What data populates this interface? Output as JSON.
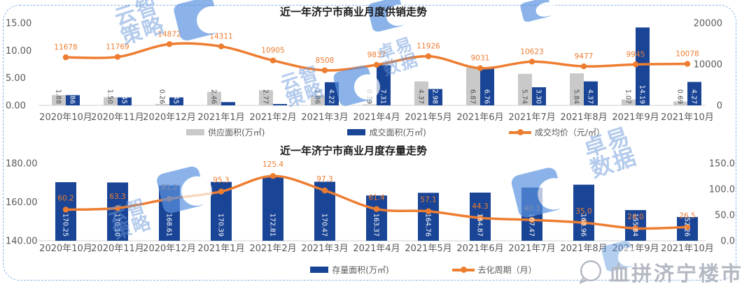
{
  "watermarks": {
    "strategy_line1": "云智",
    "strategy_line2": "策略",
    "data_line1": "卓易",
    "data_line2": "数据"
  },
  "brand": {
    "text": "血拼济宁楼市"
  },
  "colors": {
    "supply_bar": "#c9c9c9",
    "deal_bar": "#1a4596",
    "line_orange": "#ed7d31",
    "axis_text": "#595959",
    "baseline": "#d9d9d9",
    "frame": "#8ab4e4",
    "watermark_blue": "#5b93e0",
    "brand_gray": "#b3b8c2"
  },
  "chart_data": [
    {
      "type": "bar+line",
      "title": "近一年济宁市商业月度供销走势",
      "categories": [
        "2020年10月",
        "2020年11月",
        "2020年12月",
        "2021年1月",
        "2021年2月",
        "2021年3月",
        "2021年4月",
        "2021年5月",
        "2021年6月",
        "2021年7月",
        "2021年8月",
        "2021年9月",
        "2021年10月"
      ],
      "series": [
        {
          "name": "供应面积(万㎡)",
          "type": "bar",
          "color": "#c9c9c9",
          "axis": "left",
          "values": [
            1.88,
            1.5,
            0.26,
            2.46,
            2.77,
            1.86,
            0.19,
            4.37,
            6.87,
            5.74,
            5.84,
            1.07,
            0.69
          ],
          "labels": [
            "1.88",
            "1.50",
            "0.26",
            "2.46",
            "2.77",
            "1.86",
            "0.19",
            "4.37",
            "6.87",
            "5.74",
            "5.84",
            "1.07",
            "0.69"
          ]
        },
        {
          "name": "成交面积(万㎡)",
          "type": "bar",
          "color": "#1a4596",
          "axis": "left",
          "values": [
            1.86,
            1.45,
            1.45,
            0.6,
            0.25,
            4.22,
            7.31,
            2.98,
            6.76,
            3.3,
            4.37,
            14.19,
            4.27
          ],
          "labels": [
            "1.86",
            "1.45",
            "1.45",
            "",
            "",
            "4.22",
            "7.31",
            "2.98",
            "6.76",
            "3.30",
            "4.37",
            "14.19",
            "4.27"
          ]
        },
        {
          "name": "成交均价（元/㎡）",
          "type": "line",
          "color": "#ed7d31",
          "axis": "right",
          "values": [
            11678,
            11769,
            14872,
            14311,
            10905,
            8508,
            9837,
            11926,
            9031,
            10623,
            9477,
            9945,
            10078
          ],
          "labels": [
            "11678",
            "11769",
            "14872",
            "14311",
            "10905",
            "8508",
            "9837",
            "11926",
            "9031",
            "10623",
            "9477",
            "9945",
            "10078"
          ]
        }
      ],
      "left_axis": {
        "ticks": [
          "15.00",
          "10.00",
          "5.00",
          "0.00"
        ],
        "min": 0,
        "max": 15
      },
      "right_axis": {
        "ticks": [
          "20000",
          "10000",
          "0"
        ],
        "min": 0,
        "max": 20000
      },
      "legend_position": "bottom",
      "grid": false
    },
    {
      "type": "bar+line",
      "title": "近一年济宁市商业月度存量走势",
      "categories": [
        "2020年10月",
        "2020年11月",
        "2020年12月",
        "2021年1月",
        "2021年2月",
        "2021年3月",
        "2021年4月",
        "2021年5月",
        "2021年6月",
        "2021年7月",
        "2021年8月",
        "2021年9月",
        "2021年10月"
      ],
      "series": [
        {
          "name": "存量面积(万㎡)",
          "type": "bar",
          "color": "#1a4596",
          "axis": "left",
          "values": [
            170.25,
            170.1,
            168.61,
            170.39,
            172.81,
            170.47,
            163.37,
            164.76,
            164.87,
            167.47,
            168.96,
            155.84,
            152.26
          ],
          "labels": [
            "170.25",
            "170.10",
            "168.61",
            "170.39",
            "172.81",
            "170.47",
            "163.37",
            "164.76",
            "164.87",
            "167.47",
            "168.96",
            "155.84",
            "152.26"
          ]
        },
        {
          "name": "去化周期（月）",
          "type": "line",
          "color": "#ed7d31",
          "axis": "right",
          "values": [
            60.2,
            63.3,
            81.2,
            95.3,
            125.4,
            97.3,
            61.4,
            57.1,
            44.3,
            40.3,
            35.0,
            24.0,
            26.5
          ],
          "labels": [
            "60.2",
            "63.3",
            "81.2",
            "95.3",
            "125.4",
            "97.3",
            "61.4",
            "57.1",
            "44.3",
            "40.3",
            "35.0",
            "24.0",
            "26.5"
          ]
        }
      ],
      "left_axis": {
        "ticks": [
          "180.00",
          "160.00",
          "140.00"
        ],
        "min": 140,
        "max": 180
      },
      "right_axis": {
        "ticks": [
          "150.0",
          "100.0",
          "50.0",
          "0.0"
        ],
        "min": 0,
        "max": 150
      },
      "legend_position": "bottom",
      "grid": false
    }
  ]
}
